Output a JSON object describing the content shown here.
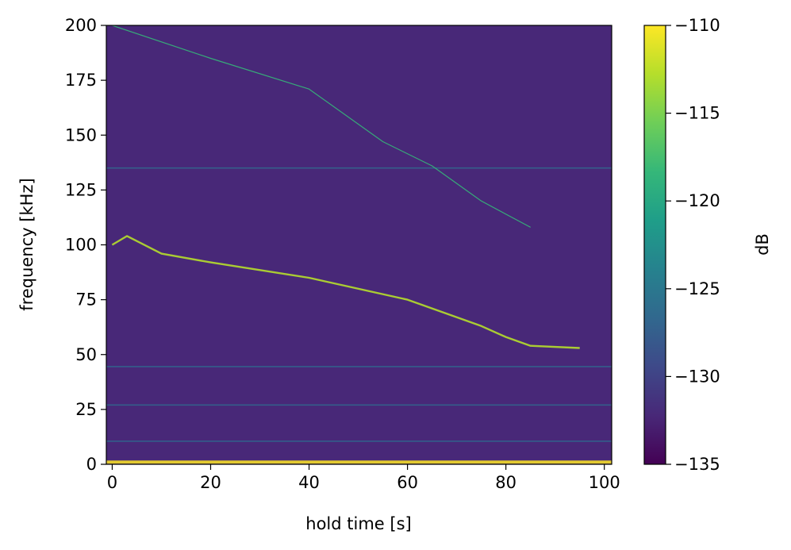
{
  "chart_data": {
    "type": "heatmap",
    "title": "",
    "xlabel": "hold time [s]",
    "ylabel": "frequency [kHz]",
    "xlim": [
      -1.2,
      101.5
    ],
    "ylim": [
      0,
      200
    ],
    "x_ticks": [
      "0",
      "20",
      "40",
      "60",
      "80",
      "100"
    ],
    "y_ticks": [
      "0",
      "25",
      "50",
      "75",
      "100",
      "125",
      "150",
      "175",
      "200"
    ],
    "colorbar": {
      "label": "dB",
      "range": [
        -135,
        -110
      ],
      "ticks": [
        "−110",
        "−115",
        "−120",
        "−125",
        "−130",
        "−135"
      ],
      "colormap": "viridis",
      "stops": [
        "#440154",
        "#482878",
        "#3e4989",
        "#31688e",
        "#26828e",
        "#1f9e89",
        "#35b779",
        "#6ece58",
        "#b5de2b",
        "#fde725"
      ]
    },
    "background_db": -131,
    "features": [
      {
        "kind": "tone",
        "frequency_khz": 1,
        "db": -110
      },
      {
        "kind": "tone",
        "frequency_khz": 10.5,
        "db": -127
      },
      {
        "kind": "tone",
        "frequency_khz": 27,
        "db": -128
      },
      {
        "kind": "tone",
        "frequency_khz": 44.5,
        "db": -127
      },
      {
        "kind": "tone",
        "frequency_khz": 135,
        "db": -128
      },
      {
        "kind": "sweep",
        "db": -118,
        "points": [
          [
            0,
            200
          ],
          [
            20,
            185
          ],
          [
            40,
            171
          ],
          [
            55,
            147
          ],
          [
            65,
            136
          ],
          [
            75,
            120
          ],
          [
            85,
            108
          ]
        ]
      },
      {
        "kind": "sweep",
        "db": -114,
        "points": [
          [
            0,
            100
          ],
          [
            3,
            104
          ],
          [
            10,
            96
          ],
          [
            20,
            92
          ],
          [
            40,
            85
          ],
          [
            60,
            75
          ],
          [
            75,
            63
          ],
          [
            80,
            58
          ],
          [
            85,
            54
          ],
          [
            95,
            53
          ]
        ]
      }
    ]
  }
}
